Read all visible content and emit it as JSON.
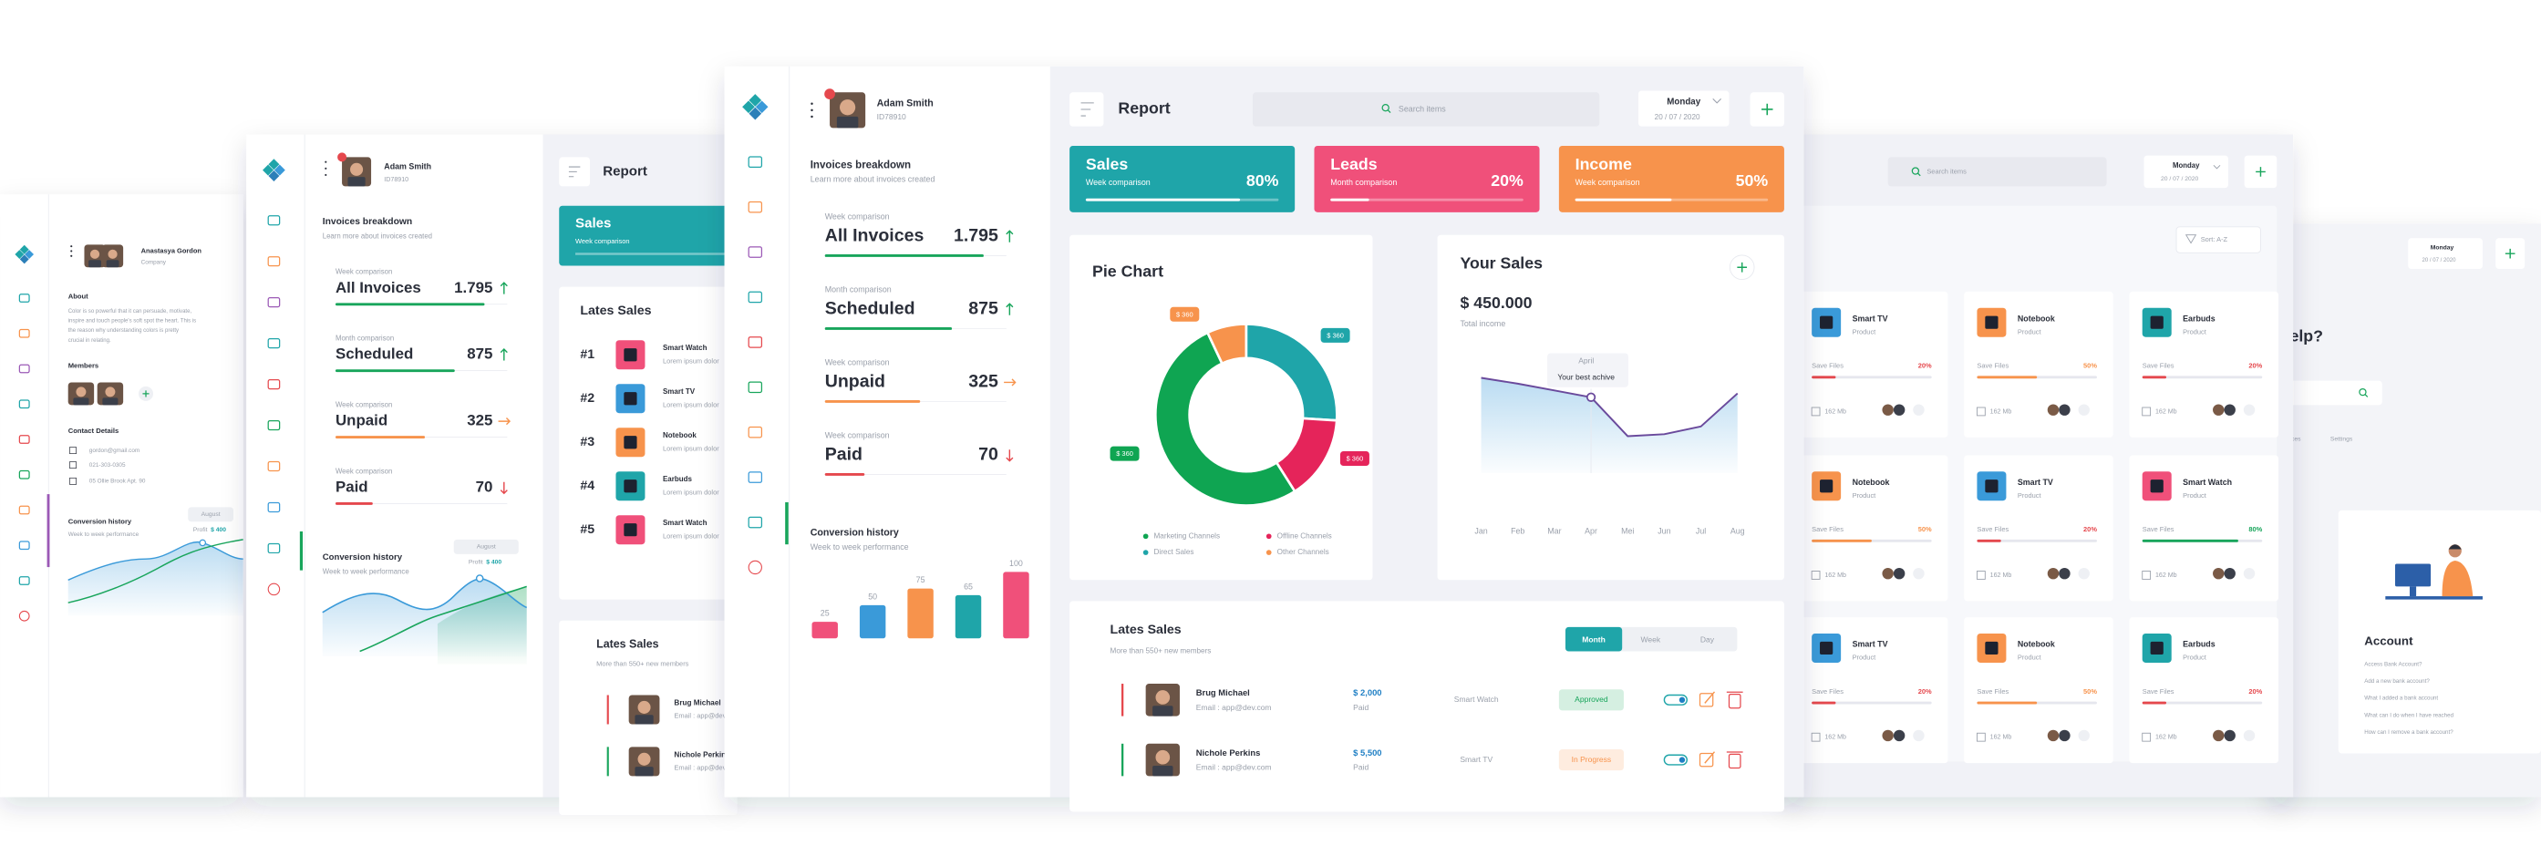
{
  "far_left": {
    "user": {
      "name": "Anastasya Gordon",
      "role": "Company"
    },
    "about": {
      "title": "About",
      "lines": [
        "Color is so powerful that it can persuade, motivate,",
        "inspire and touch people's soft spot the heart. This is",
        "the reason why understanding colors is pretty",
        "crucial in relating."
      ]
    },
    "members": {
      "title": "Members"
    },
    "contact": {
      "title": "Contact Details",
      "email": "gordon@gmail.com",
      "phone": "021-303-0305",
      "address": "05 Ollie Brook Apt. 90"
    },
    "conversion": {
      "title": "Conversion history",
      "subtitle": "Week to week performance",
      "tooltip": {
        "month": "August",
        "profit_label": "Profit",
        "profit": "$ 400"
      }
    }
  },
  "left": {
    "user": {
      "name": "Adam Smith",
      "id": "ID78910"
    },
    "invoices": {
      "title": "Invoices breakdown",
      "subtitle": "Learn more about invoices created",
      "items": [
        {
          "period": "Week comparison",
          "label": "All Invoices",
          "value": "1.795",
          "trend": "up",
          "color": "#18a55b"
        },
        {
          "period": "Month comparison",
          "label": "Scheduled",
          "value": "875",
          "trend": "up",
          "color": "#18a55b"
        },
        {
          "period": "Week comparison",
          "label": "Unpaid",
          "value": "325",
          "trend": "flat",
          "color": "#f7934c"
        },
        {
          "period": "Week comparison",
          "label": "Paid",
          "value": "70",
          "trend": "down",
          "color": "#e5484d"
        }
      ]
    },
    "conversion": {
      "title": "Conversion history",
      "subtitle": "Week to week performance",
      "tooltip": {
        "month": "August",
        "profit_label": "Profit",
        "profit": "$ 400"
      }
    },
    "header": {
      "title": "Report"
    },
    "kpi": {
      "title": "Sales",
      "subtitle": "Week comparison"
    },
    "top_sales": {
      "title": "Lates Sales",
      "items": [
        {
          "rank": "#1",
          "name": "Smart Watch",
          "text": "Lorem ipsum dolor",
          "color": "#f0507a"
        },
        {
          "rank": "#2",
          "name": "Smart TV",
          "text": "Lorem ipsum dolor",
          "color": "#3a9ad9"
        },
        {
          "rank": "#3",
          "name": "Notebook",
          "text": "Lorem ipsum dolor",
          "color": "#f7934c"
        },
        {
          "rank": "#4",
          "name": "Earbuds",
          "text": "Lorem ipsum dolor",
          "color": "#1fa5a9"
        },
        {
          "rank": "#5",
          "name": "Smart Watch",
          "text": "Lorem ipsum dolor",
          "color": "#f0507a"
        }
      ]
    },
    "lates_sales": {
      "title": "Lates Sales",
      "subtitle": "More than 550+ new members",
      "rows": [
        {
          "name": "Brug Michael",
          "email": "Email : app@dev.com",
          "accent": "#e5484d"
        },
        {
          "name": "Nichole Perkins",
          "email": "Email : app@dev.com",
          "accent": "#18a55b"
        }
      ]
    }
  },
  "right": {
    "search_placeholder": "Search items",
    "day": "Monday",
    "date": "20 / 07 / 2020",
    "sort": "Sort: A-Z",
    "files": [
      {
        "name": "Smart TV",
        "type": "Product",
        "label": "Save Files",
        "percent": {
          "value": 20,
          "label": "20%"
        },
        "size": "162 Mb",
        "color": "#e5484d",
        "icon_color": "#3a9ad9"
      },
      {
        "name": "Notebook",
        "type": "Product",
        "label": "Save Files",
        "percent": {
          "value": 50,
          "label": "50%"
        },
        "size": "162 Mb",
        "color": "#f7934c",
        "icon_color": "#f7934c"
      },
      {
        "name": "Earbuds",
        "type": "Product",
        "label": "Save Files",
        "percent": {
          "value": 20,
          "label": "20%"
        },
        "size": "162 Mb",
        "color": "#e5484d",
        "icon_color": "#1fa5a9"
      },
      {
        "name": "Notebook",
        "type": "Product",
        "label": "Save Files",
        "percent": {
          "value": 50,
          "label": "50%"
        },
        "size": "162 Mb",
        "color": "#f7934c",
        "icon_color": "#f7934c"
      },
      {
        "name": "Smart TV",
        "type": "Product",
        "label": "Save Files",
        "percent": {
          "value": 20,
          "label": "20%"
        },
        "size": "162 Mb",
        "color": "#e5484d",
        "icon_color": "#3a9ad9"
      },
      {
        "name": "Smart Watch",
        "type": "Product",
        "label": "Save Files",
        "percent": {
          "value": 80,
          "label": "80%"
        },
        "size": "162 Mb",
        "color": "#18a55b",
        "icon_color": "#f0507a"
      },
      {
        "name": "Smart TV",
        "type": "Product",
        "label": "Save Files",
        "percent": {
          "value": 20,
          "label": "20%"
        },
        "size": "162 Mb",
        "color": "#e5484d",
        "icon_color": "#3a9ad9"
      },
      {
        "name": "Notebook",
        "type": "Product",
        "label": "Save Files",
        "percent": {
          "value": 50,
          "label": "50%"
        },
        "size": "162 Mb",
        "color": "#f7934c",
        "icon_color": "#f7934c"
      },
      {
        "name": "Earbuds",
        "type": "Product",
        "label": "Save Files",
        "percent": {
          "value": 20,
          "label": "20%"
        },
        "size": "162 Mb",
        "color": "#e5484d",
        "icon_color": "#1fa5a9"
      }
    ]
  },
  "far_right": {
    "day": "Monday",
    "date": "20 / 07 / 2020",
    "heading": "elp?",
    "tabs": [
      "ices",
      "Settings"
    ],
    "account": {
      "title": "Account",
      "questions": [
        "Access Bank Account?",
        "Add a new bank account?",
        "What I added a bank account",
        "What can I do when I have reached",
        "How can I remove a bank account?"
      ]
    }
  },
  "main": {
    "user": {
      "name": "Adam Smith",
      "id": "ID78910"
    },
    "invoices": {
      "title": "Invoices breakdown",
      "subtitle": "Learn more about invoices created",
      "items": [
        {
          "period": "Week comparison",
          "label": "All Invoices",
          "value": "1.795",
          "trend": "up",
          "color": "#18a55b"
        },
        {
          "period": "Month comparison",
          "label": "Scheduled",
          "value": "875",
          "trend": "up",
          "color": "#18a55b"
        },
        {
          "period": "Week comparison",
          "label": "Unpaid",
          "value": "325",
          "trend": "flat",
          "color": "#f7934c"
        },
        {
          "period": "Week comparison",
          "label": "Paid",
          "value": "70",
          "trend": "down",
          "color": "#e5484d"
        }
      ]
    },
    "conversion": {
      "title": "Conversion history",
      "subtitle": "Week to week performance",
      "chart": {
        "type": "bar",
        "values": [
          25,
          50,
          75,
          65,
          100
        ],
        "colors": [
          "#f0507a",
          "#3a9ad9",
          "#f7934c",
          "#1fa5a9",
          "#f0507a"
        ]
      }
    },
    "header": {
      "title": "Report",
      "search_placeholder": "Search items",
      "day": "Monday",
      "date": "20 / 07 / 2020"
    },
    "kpis": [
      {
        "title": "Sales",
        "subtitle": "Week comparison",
        "percent": {
          "value": 80,
          "label": "80%"
        },
        "color": "#1fa5a9"
      },
      {
        "title": "Leads",
        "subtitle": "Month comparison",
        "percent": {
          "value": 20,
          "label": "20%"
        },
        "color": "#f0507a"
      },
      {
        "title": "Income",
        "subtitle": "Week comparison",
        "percent": {
          "value": 50,
          "label": "50%"
        },
        "color": "#f7934c"
      }
    ],
    "pie_chart": {
      "type": "pie",
      "title": "Pie Chart",
      "series": [
        {
          "name": "Direct Sales",
          "color": "#1fa5a9",
          "value": 26,
          "callout": "$ 360"
        },
        {
          "name": "Offline Channels",
          "color": "#e5245a",
          "value": 15,
          "callout": "$ 360"
        },
        {
          "name": "Marketing Channels",
          "color": "#0fa552",
          "value": 52,
          "callout": "$ 360"
        },
        {
          "name": "Other Channels",
          "color": "#f7934c",
          "value": 7,
          "callout": "$ 360"
        }
      ]
    },
    "your_sales": {
      "title": "Your Sales",
      "total": "$ 450.000",
      "total_label": "Total income",
      "tooltip": {
        "title": "April",
        "text": "Your best achive"
      },
      "chart": {
        "type": "line",
        "categories": [
          "Jan",
          "Feb",
          "Mar",
          "Apr",
          "Mei",
          "Jun",
          "Jul",
          "Aug"
        ],
        "values": [
          78,
          72,
          65,
          58,
          18,
          20,
          28,
          62
        ],
        "ylim": [
          0,
          100
        ],
        "color": "#6a4a9c"
      }
    },
    "lates_sales": {
      "title": "Lates Sales",
      "subtitle": "More than 550+ new members",
      "tabs": [
        "Month",
        "Week",
        "Day"
      ],
      "rows": [
        {
          "name": "Brug Michael",
          "email": "Email : app@dev.com",
          "amount": "$ 2,000",
          "payment": "Paid",
          "product": "Smart Watch",
          "status": "Approved",
          "status_color": "#18a55b",
          "accent": "#e5484d"
        },
        {
          "name": "Nichole Perkins",
          "email": "Email : app@dev.com",
          "amount": "$ 5,500",
          "payment": "Paid",
          "product": "Smart TV",
          "status": "In Progress",
          "status_color": "#f7934c",
          "accent": "#18a55b"
        }
      ]
    }
  }
}
